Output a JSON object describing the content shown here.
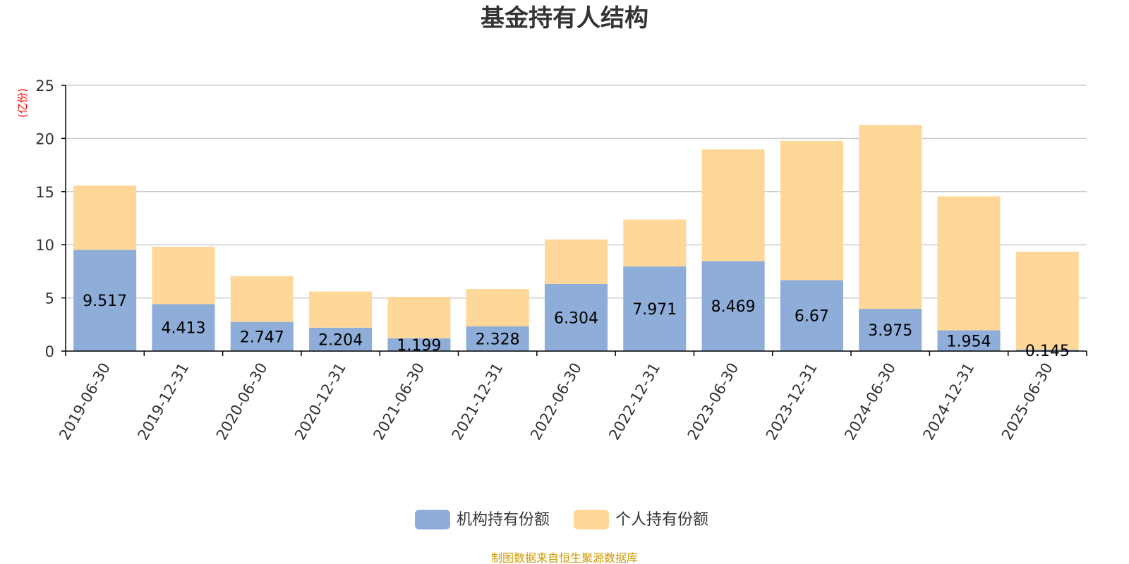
{
  "chart_data": {
    "type": "bar",
    "stacked": true,
    "title": "基金持有人结构",
    "y_unit": "(亿份)",
    "categories": [
      "2019-06-30",
      "2019-12-31",
      "2020-06-30",
      "2020-12-31",
      "2021-06-30",
      "2021-12-31",
      "2022-06-30",
      "2022-12-31",
      "2023-06-30",
      "2023-12-31",
      "2024-06-30",
      "2024-12-31",
      "2025-06-30"
    ],
    "series": [
      {
        "name": "机构持有份额",
        "color": "#8eadd9",
        "values": [
          9.517,
          4.413,
          2.747,
          2.204,
          1.199,
          2.328,
          6.304,
          7.971,
          8.469,
          6.67,
          3.975,
          1.954,
          0.145
        ],
        "labels": [
          "9.517",
          "4.413",
          "2.747",
          "2.204",
          "1.199",
          "2.328",
          "6.304",
          "7.971",
          "8.469",
          "6.67",
          "3.975",
          "1.954",
          "0.145"
        ]
      },
      {
        "name": "个人持有份额",
        "color": "#ffd899",
        "values": [
          6.05,
          5.4,
          4.3,
          3.4,
          3.9,
          3.5,
          4.2,
          4.4,
          10.5,
          13.1,
          17.3,
          12.6,
          9.2
        ]
      }
    ],
    "ylim": [
      0,
      25
    ],
    "yticks": [
      "0",
      "5",
      "10",
      "15",
      "20",
      "25"
    ],
    "grid": true,
    "legend_position": "bottom-center",
    "source_note": "制图数据来自恒生聚源数据库",
    "colors": {
      "unit": "#ff0000",
      "source": "#cc9900",
      "axis": "#000000",
      "grid": "#cccccc"
    }
  }
}
